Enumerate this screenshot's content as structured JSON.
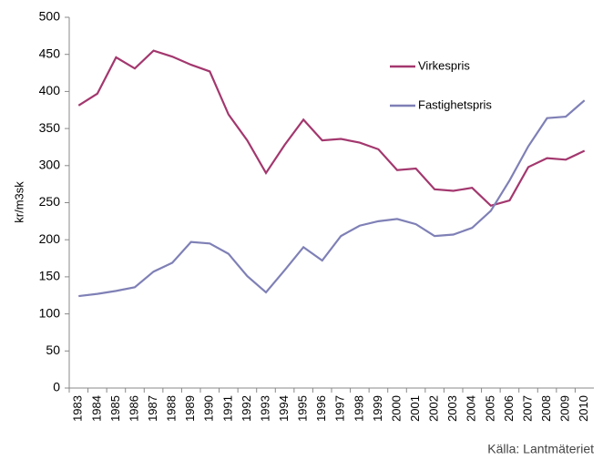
{
  "chart_data": {
    "type": "line",
    "y_label": "kr/m3sk",
    "source": "Källa: Lantmäteriet",
    "categories": [
      "1983",
      "1984",
      "1985",
      "1986",
      "1987",
      "1988",
      "1989",
      "1990",
      "1991",
      "1992",
      "1993",
      "1994",
      "1995",
      "1996",
      "1997",
      "1998",
      "1999",
      "2000",
      "2001",
      "2002",
      "2003",
      "2004",
      "2005",
      "2006",
      "2007",
      "2008",
      "2009",
      "2010"
    ],
    "series": [
      {
        "name": "Virkespris",
        "color": "#a3376e",
        "values": [
          381,
          397,
          446,
          431,
          455,
          447,
          436,
          427,
          369,
          334,
          290,
          328,
          362,
          334,
          336,
          331,
          322,
          294,
          296,
          268,
          266,
          270,
          246,
          253,
          298,
          310,
          308,
          320
        ]
      },
      {
        "name": "Fastighetspris",
        "color": "#7f80b6",
        "values": [
          124,
          127,
          131,
          136,
          157,
          169,
          197,
          195,
          181,
          151,
          129,
          159,
          190,
          172,
          205,
          219,
          225,
          228,
          221,
          205,
          207,
          216,
          239,
          280,
          326,
          364,
          366,
          388
        ]
      }
    ],
    "ylim": [
      0,
      500
    ],
    "yticks": [
      0,
      50,
      100,
      150,
      200,
      250,
      300,
      350,
      400,
      450,
      500
    ],
    "grid": false
  }
}
